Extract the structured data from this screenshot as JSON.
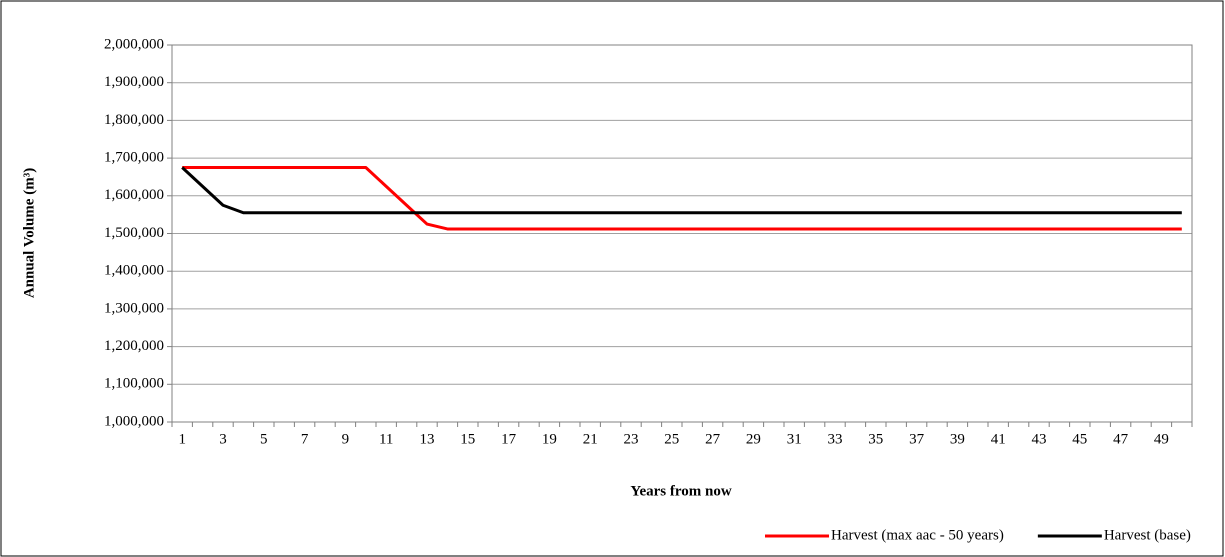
{
  "chart_data": {
    "type": "line",
    "x_label": "Years from now",
    "y_label": "Annual Volume (m³)",
    "categories": [
      1,
      null,
      3,
      null,
      5,
      null,
      7,
      null,
      9,
      null,
      11,
      null,
      13,
      null,
      15,
      null,
      17,
      null,
      19,
      null,
      21,
      null,
      23,
      null,
      25,
      null,
      27,
      null,
      29,
      null,
      31,
      null,
      33,
      null,
      35,
      null,
      37,
      null,
      39,
      null,
      41,
      null,
      43,
      null,
      45,
      null,
      47,
      null,
      49,
      null
    ],
    "series": [
      {
        "name": "Harvest (max aac - 50 years)",
        "color": "#ff0000",
        "values": [
          1675000,
          1675000,
          1675000,
          1675000,
          1675000,
          1675000,
          1675000,
          1675000,
          1675000,
          1675000,
          1625000,
          1575000,
          1525000,
          1512000,
          1512000,
          1512000,
          1512000,
          1512000,
          1512000,
          1512000,
          1512000,
          1512000,
          1512000,
          1512000,
          1512000,
          1512000,
          1512000,
          1512000,
          1512000,
          1512000,
          1512000,
          1512000,
          1512000,
          1512000,
          1512000,
          1512000,
          1512000,
          1512000,
          1512000,
          1512000,
          1512000,
          1512000,
          1512000,
          1512000,
          1512000,
          1512000,
          1512000,
          1512000,
          1512000,
          1512000
        ]
      },
      {
        "name": "Harvest (base)",
        "color": "#000000",
        "values": [
          1675000,
          1625000,
          1575000,
          1555000,
          1555000,
          1555000,
          1555000,
          1555000,
          1555000,
          1555000,
          1555000,
          1555000,
          1555000,
          1555000,
          1555000,
          1555000,
          1555000,
          1555000,
          1555000,
          1555000,
          1555000,
          1555000,
          1555000,
          1555000,
          1555000,
          1555000,
          1555000,
          1555000,
          1555000,
          1555000,
          1555000,
          1555000,
          1555000,
          1555000,
          1555000,
          1555000,
          1555000,
          1555000,
          1555000,
          1555000,
          1555000,
          1555000,
          1555000,
          1555000,
          1555000,
          1555000,
          1555000,
          1555000,
          1555000,
          1555000
        ]
      }
    ],
    "ylim": [
      1000000,
      2000000
    ],
    "yticks": [
      {
        "value": 1000000,
        "label": "1,000,000"
      },
      {
        "value": 1100000,
        "label": "1,100,000"
      },
      {
        "value": 1200000,
        "label": "1,200,000"
      },
      {
        "value": 1300000,
        "label": "1,300,000"
      },
      {
        "value": 1400000,
        "label": "1,400,000"
      },
      {
        "value": 1500000,
        "label": "1,500,000"
      },
      {
        "value": 1600000,
        "label": "1,600,000"
      },
      {
        "value": 1700000,
        "label": "1,700,000"
      },
      {
        "value": 1800000,
        "label": "1,800,000"
      },
      {
        "value": 1900000,
        "label": "1,900,000"
      },
      {
        "value": 2000000,
        "label": "2,000,000"
      }
    ],
    "grid": true,
    "legend": "bottom"
  }
}
